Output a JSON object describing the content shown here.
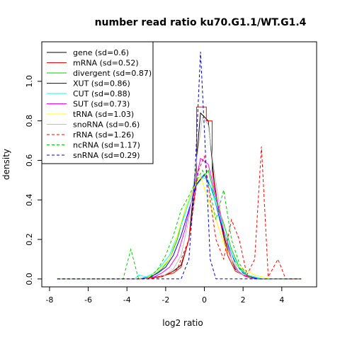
{
  "chart_data": {
    "type": "line",
    "title": "number read ratio ku70.G1.1/WT.G1.4",
    "xlabel": "log2 ratio",
    "ylabel": "density",
    "xlim": [
      -8.4,
      5.8
    ],
    "ylim": [
      -0.04,
      1.2
    ],
    "xticks": [
      -8,
      -6,
      -4,
      -2,
      0,
      2,
      4
    ],
    "yticks": [
      0.0,
      0.2,
      0.4,
      0.6,
      0.8,
      1.0
    ],
    "legend_position": "top-left",
    "series": [
      {
        "name": "gene (sd=0.6)",
        "color": "#000000",
        "dash": "solid",
        "points": [
          [
            -7.6,
            0
          ],
          [
            -3.2,
            0
          ],
          [
            -2.8,
            0.01
          ],
          [
            -2.4,
            0.01
          ],
          [
            -2.0,
            0.02
          ],
          [
            -1.6,
            0.04
          ],
          [
            -1.2,
            0.07
          ],
          [
            -0.8,
            0.2
          ],
          [
            -0.5,
            0.5
          ],
          [
            -0.2,
            0.84
          ],
          [
            0.2,
            0.8
          ],
          [
            0.5,
            0.5
          ],
          [
            0.8,
            0.3
          ],
          [
            1.2,
            0.15
          ],
          [
            1.6,
            0.05
          ],
          [
            2.0,
            0.02
          ],
          [
            2.4,
            0.01
          ],
          [
            2.8,
            0
          ],
          [
            5.0,
            0
          ]
        ]
      },
      {
        "name": "mRNA (sd=0.52)",
        "color": "#ff0000",
        "dash": "solid",
        "points": [
          [
            -7.6,
            0
          ],
          [
            -3.2,
            0
          ],
          [
            -2.4,
            0.01
          ],
          [
            -2.0,
            0.02
          ],
          [
            -1.6,
            0.03
          ],
          [
            -1.2,
            0.06
          ],
          [
            -0.8,
            0.2
          ],
          [
            -0.4,
            0.5
          ],
          [
            -0.4,
            0.87
          ],
          [
            0.1,
            0.87
          ],
          [
            0.1,
            0.8
          ],
          [
            0.4,
            0.8
          ],
          [
            0.4,
            0.55
          ],
          [
            0.8,
            0.3
          ],
          [
            1.2,
            0.12
          ],
          [
            1.6,
            0.04
          ],
          [
            2.0,
            0.02
          ],
          [
            2.4,
            0.01
          ],
          [
            2.8,
            0
          ],
          [
            5.0,
            0
          ]
        ]
      },
      {
        "name": "divergent (sd=0.87)",
        "color": "#00cd00",
        "dash": "solid",
        "points": [
          [
            -7.6,
            0
          ],
          [
            -3.2,
            0
          ],
          [
            -2.6,
            0.02
          ],
          [
            -2.2,
            0.05
          ],
          [
            -1.8,
            0.1
          ],
          [
            -1.4,
            0.2
          ],
          [
            -1.0,
            0.35
          ],
          [
            -0.6,
            0.45
          ],
          [
            -0.2,
            0.5
          ],
          [
            0.2,
            0.55
          ],
          [
            0.6,
            0.4
          ],
          [
            1.0,
            0.28
          ],
          [
            1.4,
            0.15
          ],
          [
            1.8,
            0.06
          ],
          [
            2.2,
            0.02
          ],
          [
            2.6,
            0.01
          ],
          [
            3.0,
            0
          ],
          [
            5.0,
            0
          ]
        ]
      },
      {
        "name": "XUT (sd=0.86)",
        "color": "#0000ff",
        "dash": "solid",
        "points": [
          [
            -7.6,
            0
          ],
          [
            -3.4,
            0
          ],
          [
            -2.8,
            0.01
          ],
          [
            -2.4,
            0.03
          ],
          [
            -2.0,
            0.06
          ],
          [
            -1.6,
            0.12
          ],
          [
            -1.2,
            0.22
          ],
          [
            -0.8,
            0.35
          ],
          [
            -0.4,
            0.48
          ],
          [
            0.0,
            0.53
          ],
          [
            0.4,
            0.45
          ],
          [
            0.8,
            0.3
          ],
          [
            1.2,
            0.18
          ],
          [
            1.6,
            0.08
          ],
          [
            2.0,
            0.03
          ],
          [
            2.4,
            0.01
          ],
          [
            2.8,
            0
          ],
          [
            5.0,
            0
          ]
        ]
      },
      {
        "name": "CUT (sd=0.88)",
        "color": "#00ffff",
        "dash": "solid",
        "points": [
          [
            -7.6,
            0
          ],
          [
            -3.6,
            0
          ],
          [
            -3.4,
            0.02
          ],
          [
            -3.0,
            0.01
          ],
          [
            -2.6,
            0.03
          ],
          [
            -2.2,
            0.07
          ],
          [
            -1.8,
            0.12
          ],
          [
            -1.4,
            0.22
          ],
          [
            -1.0,
            0.33
          ],
          [
            -0.6,
            0.45
          ],
          [
            -0.2,
            0.52
          ],
          [
            0.2,
            0.5
          ],
          [
            0.6,
            0.38
          ],
          [
            1.0,
            0.25
          ],
          [
            1.4,
            0.13
          ],
          [
            1.8,
            0.05
          ],
          [
            2.2,
            0.02
          ],
          [
            2.6,
            0.01
          ],
          [
            3.0,
            0
          ],
          [
            5.0,
            0
          ]
        ]
      },
      {
        "name": "SUT (sd=0.73)",
        "color": "#ff00ff",
        "dash": "solid",
        "points": [
          [
            -7.6,
            0
          ],
          [
            -3.2,
            0
          ],
          [
            -2.6,
            0.01
          ],
          [
            -2.2,
            0.03
          ],
          [
            -1.8,
            0.06
          ],
          [
            -1.4,
            0.12
          ],
          [
            -1.0,
            0.25
          ],
          [
            -0.6,
            0.42
          ],
          [
            -0.2,
            0.61
          ],
          [
            0.2,
            0.58
          ],
          [
            0.6,
            0.42
          ],
          [
            1.0,
            0.25
          ],
          [
            1.4,
            0.1
          ],
          [
            1.8,
            0.03
          ],
          [
            2.2,
            0.01
          ],
          [
            2.6,
            0
          ],
          [
            5.0,
            0
          ]
        ]
      },
      {
        "name": "tRNA (sd=1.03)",
        "color": "#ffff00",
        "dash": "solid",
        "points": [
          [
            -7.6,
            0
          ],
          [
            -3.0,
            0
          ],
          [
            -2.6,
            0.03
          ],
          [
            -2.2,
            0.06
          ],
          [
            -1.8,
            0.1
          ],
          [
            -1.4,
            0.22
          ],
          [
            -1.0,
            0.35
          ],
          [
            -0.6,
            0.45
          ],
          [
            -0.2,
            0.52
          ],
          [
            0.2,
            0.4
          ],
          [
            0.6,
            0.3
          ],
          [
            1.0,
            0.18
          ],
          [
            1.4,
            0.1
          ],
          [
            1.8,
            0.06
          ],
          [
            2.2,
            0.04
          ],
          [
            2.6,
            0.02
          ],
          [
            3.0,
            0.01
          ],
          [
            3.4,
            0
          ],
          [
            5.0,
            0
          ]
        ]
      },
      {
        "name": "snoRNA (sd=0.6)",
        "color": "#bebebe",
        "dash": "solid",
        "points": [
          [
            -7.6,
            0
          ],
          [
            -2.8,
            0
          ],
          [
            -2.2,
            0.01
          ],
          [
            -1.6,
            0.05
          ],
          [
            -1.2,
            0.12
          ],
          [
            -0.8,
            0.3
          ],
          [
            -0.4,
            0.6
          ],
          [
            -0.1,
            0.82
          ],
          [
            0.2,
            0.78
          ],
          [
            0.5,
            0.55
          ],
          [
            0.9,
            0.3
          ],
          [
            1.3,
            0.12
          ],
          [
            1.7,
            0.04
          ],
          [
            2.1,
            0.01
          ],
          [
            2.5,
            0
          ],
          [
            5.0,
            0
          ]
        ]
      },
      {
        "name": "rRNA (sd=1.26)",
        "color": "#ff0000",
        "dash": "dashed",
        "points": [
          [
            -7.6,
            0
          ],
          [
            -3.0,
            0
          ],
          [
            -2.2,
            0.01
          ],
          [
            -1.4,
            0.05
          ],
          [
            -0.8,
            0.2
          ],
          [
            -0.3,
            0.55
          ],
          [
            0.0,
            0.62
          ],
          [
            0.3,
            0.4
          ],
          [
            0.6,
            0.2
          ],
          [
            1.0,
            0.1
          ],
          [
            1.4,
            0.3
          ],
          [
            1.8,
            0.2
          ],
          [
            2.2,
            0.02
          ],
          [
            2.6,
            0.1
          ],
          [
            2.95,
            0.67
          ],
          [
            3.3,
            0.01
          ],
          [
            3.8,
            0.1
          ],
          [
            4.2,
            0
          ],
          [
            5.0,
            0
          ]
        ]
      },
      {
        "name": "ncRNA (sd=1.17)",
        "color": "#00cd00",
        "dash": "dashed",
        "points": [
          [
            -7.6,
            0
          ],
          [
            -4.2,
            0
          ],
          [
            -3.8,
            0.15
          ],
          [
            -3.4,
            0
          ],
          [
            -2.8,
            0.01
          ],
          [
            -2.4,
            0.05
          ],
          [
            -2.0,
            0.12
          ],
          [
            -1.6,
            0.22
          ],
          [
            -1.2,
            0.35
          ],
          [
            -0.8,
            0.42
          ],
          [
            -0.4,
            0.5
          ],
          [
            -0.1,
            0.55
          ],
          [
            0.2,
            0.48
          ],
          [
            0.6,
            0.3
          ],
          [
            1.0,
            0.45
          ],
          [
            1.4,
            0.2
          ],
          [
            1.8,
            0.08
          ],
          [
            2.2,
            0.02
          ],
          [
            2.6,
            0
          ],
          [
            5.0,
            0
          ]
        ]
      },
      {
        "name": "snRNA (sd=0.29)",
        "color": "#0000cd",
        "dash": "dashed",
        "points": [
          [
            -7.6,
            0
          ],
          [
            -1.2,
            0
          ],
          [
            -0.8,
            0.1
          ],
          [
            -0.5,
            0.5
          ],
          [
            -0.2,
            1.15
          ],
          [
            0.1,
            0.55
          ],
          [
            0.3,
            0.1
          ],
          [
            0.6,
            0
          ],
          [
            5.0,
            0
          ]
        ]
      }
    ]
  }
}
